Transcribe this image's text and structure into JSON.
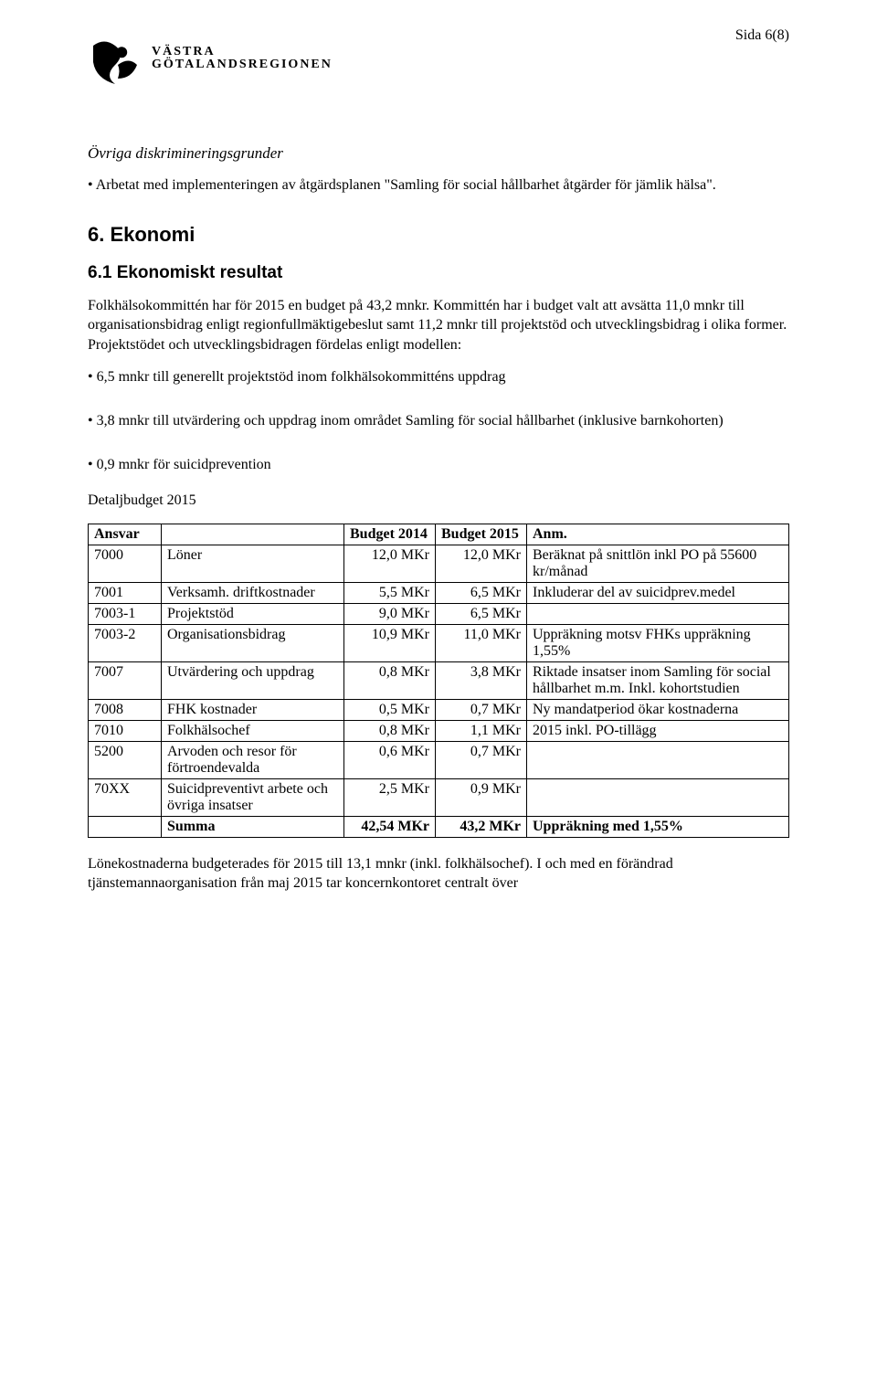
{
  "page_number": "Sida 6(8)",
  "logo": {
    "line1": "VÄSTRA",
    "line2": "GÖTALANDSREGIONEN"
  },
  "section_italic": "Övriga diskrimineringsgrunder",
  "bullet1_prefix": "• Arbetat med implementeringen av åtgärdsplanen \"Samling för social hållbarhet åtgärder för jämlik hälsa\".",
  "h2_ekonomi": "6. Ekonomi",
  "h3_resultat": "6.1 Ekonomiskt resultat",
  "para1": "Folkhälsokommittén har för 2015 en budget på 43,2 mnkr. Kommittén har i budget valt att avsätta 11,0 mnkr till organisationsbidrag enligt regionfullmäktigebeslut samt 11,2 mnkr till projektstöd och utvecklingsbidrag i olika former. Projektstödet och utvecklingsbidragen fördelas enligt modellen:",
  "bullet2": "• 6,5 mnkr till generellt projektstöd inom folkhälsokommitténs uppdrag",
  "bullet3": "• 3,8 mnkr till utvärdering och uppdrag inom området Samling för social hållbarhet (inklusive barnkohorten)",
  "bullet4": "• 0,9 mnkr för suicidprevention",
  "detaljbudget_label": "Detaljbudget 2015",
  "table": {
    "headers": {
      "ansvar": "Ansvar",
      "budget2014": "Budget 2014",
      "budget2015": "Budget 2015",
      "anm": "Anm."
    },
    "rows": [
      {
        "code": "7000",
        "desc": "Löner",
        "b14": "12,0 MKr",
        "b15": "12,0 MKr",
        "anm": "Beräknat på snittlön inkl PO på 55600 kr/månad"
      },
      {
        "code": "7001",
        "desc": "Verksamh. driftkostnader",
        "b14": "5,5 MKr",
        "b15": "6,5 MKr",
        "anm": "Inkluderar del av suicidprev.medel"
      },
      {
        "code": "7003-1",
        "desc": "Projektstöd",
        "b14": "9,0 MKr",
        "b15": "6,5 MKr",
        "anm": ""
      },
      {
        "code": "7003-2",
        "desc": "Organisationsbidrag",
        "b14": "10,9 MKr",
        "b15": "11,0 MKr",
        "anm": "Uppräkning motsv FHKs uppräkning 1,55%"
      },
      {
        "code": "7007",
        "desc": "Utvärdering och uppdrag",
        "b14": "0,8 MKr",
        "b15": "3,8 MKr",
        "anm": "Riktade insatser inom Samling för social hållbarhet m.m. Inkl. kohortstudien"
      },
      {
        "code": "7008",
        "desc": "FHK kostnader",
        "b14": "0,5 MKr",
        "b15": "0,7 MKr",
        "anm": "Ny mandatperiod ökar kostnaderna"
      },
      {
        "code": "7010",
        "desc": "Folkhälsochef",
        "b14": "0,8 MKr",
        "b15": "1,1 MKr",
        "anm": "2015 inkl. PO-tillägg"
      },
      {
        "code": "5200",
        "desc": "Arvoden och resor för förtroendevalda",
        "b14": "0,6 MKr",
        "b15": "0,7 MKr",
        "anm": ""
      },
      {
        "code": "70XX",
        "desc": "Suicidpreventivt arbete och övriga insatser",
        "b14": "2,5 MKr",
        "b15": "0,9 MKr",
        "anm": ""
      }
    ],
    "sum": {
      "label": "Summa",
      "b14": "42,54 MKr",
      "b15": "43,2 MKr",
      "anm": "Uppräkning med 1,55%"
    }
  },
  "para_footer": "Lönekostnaderna budgeterades för 2015 till 13,1 mnkr (inkl. folkhälsochef). I och med en förändrad tjänstemannaorganisation från maj 2015 tar koncernkontoret centralt över"
}
